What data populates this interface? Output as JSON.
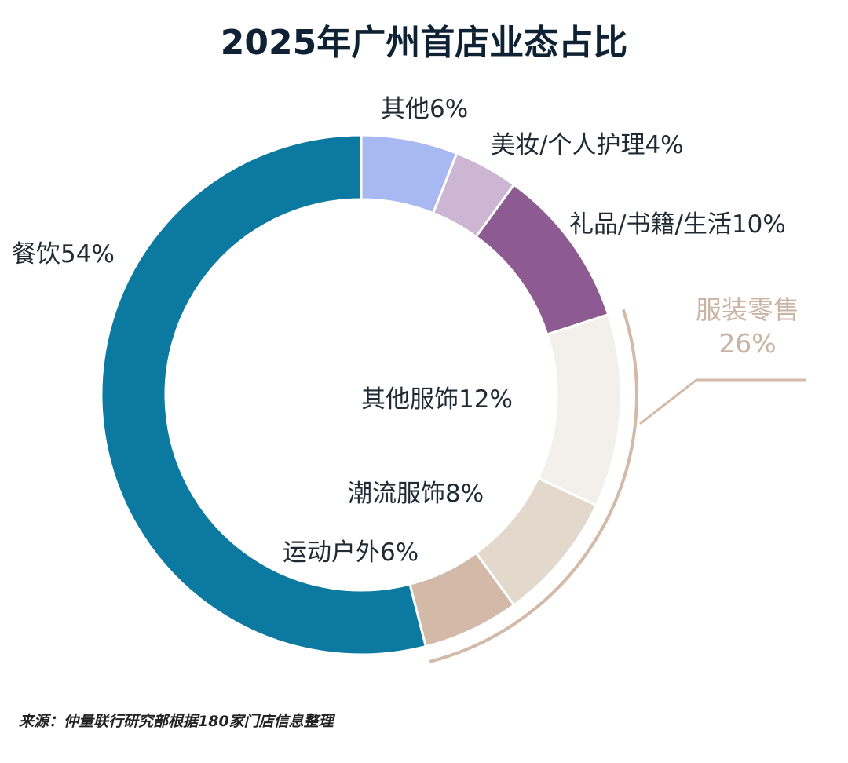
{
  "chart_data": {
    "type": "pie",
    "donut": true,
    "title": "2025年广州首店业态占比",
    "start": "top",
    "direction": "clockwise",
    "slices": [
      {
        "label": "其他6%",
        "name": "其他",
        "value": 6,
        "color": "#a8b8f0"
      },
      {
        "label": "美妆/个人护理4%",
        "name": "美妆/个人护理",
        "value": 4,
        "color": "#cdb6d4"
      },
      {
        "label": "礼品/书籍/生活10%",
        "name": "礼品/书籍/生活",
        "value": 10,
        "color": "#8e5a92"
      },
      {
        "label": "其他服饰12%",
        "name": "其他服饰",
        "value": 12,
        "color": "#f3f0ec"
      },
      {
        "label": "潮流服饰8%",
        "name": "潮流服饰",
        "value": 8,
        "color": "#e3d8cc"
      },
      {
        "label": "运动户外6%",
        "name": "运动户外",
        "value": 6,
        "color": "#d2b9a8"
      },
      {
        "label": "餐饮54%",
        "name": "餐饮",
        "value": 54,
        "color": "#0c7aa0"
      }
    ],
    "group": {
      "name": "服装零售",
      "value_label": "26%",
      "value": 26,
      "members": [
        "其他服饰",
        "潮流服饰",
        "运动户外"
      ],
      "color": "#d2b9a8"
    },
    "source": "来源：仲量联行研究部根据180家门店信息整理"
  }
}
